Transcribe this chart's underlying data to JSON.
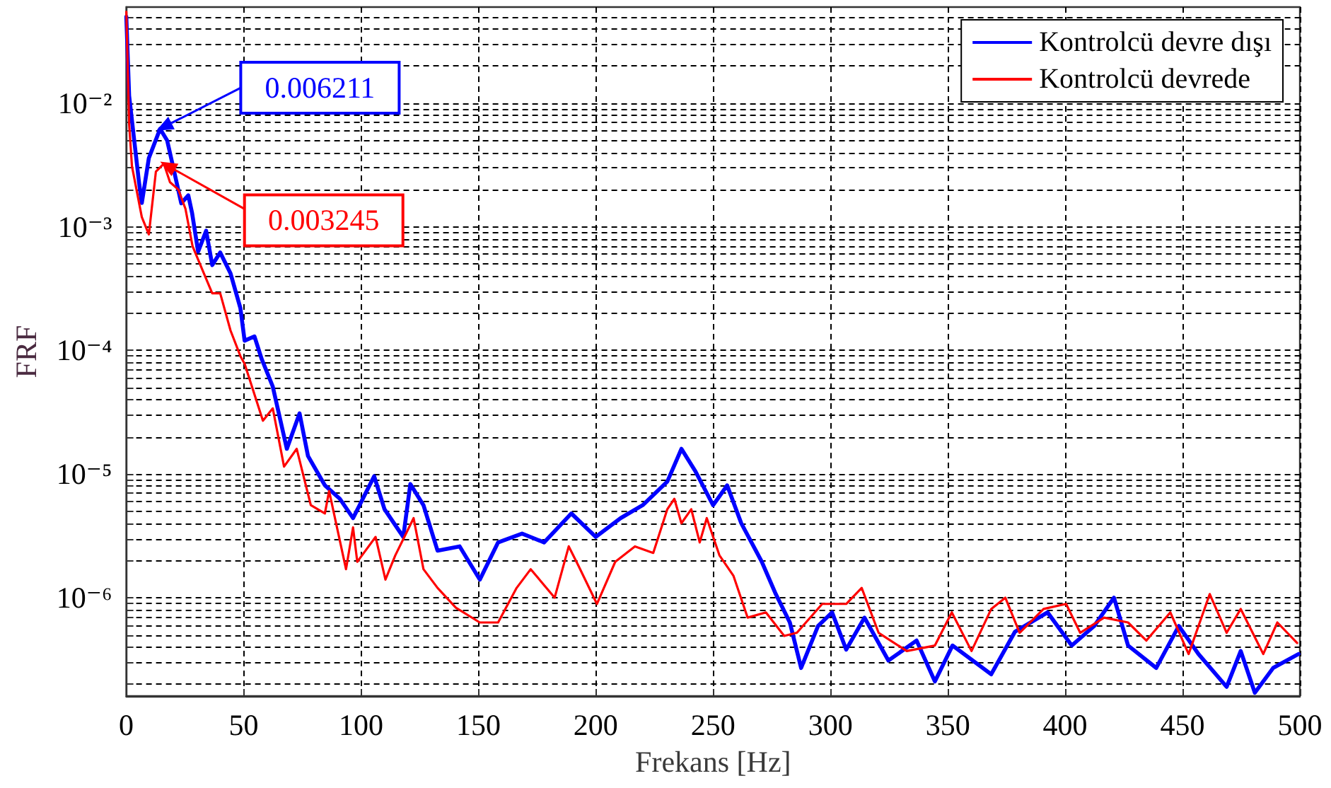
{
  "chart_data": {
    "type": "line",
    "xlabel": "Frekans [Hz]",
    "ylabel": "FRF",
    "log": "y",
    "grid": true,
    "legend": "top right",
    "marker": "none",
    "xlim": [
      0,
      500
    ],
    "xticks": [
      0,
      50,
      100,
      150,
      200,
      250,
      300,
      350,
      400,
      450,
      500
    ],
    "ylim": [
      1.6e-07,
      0.06
    ],
    "yticks": [
      {
        "value": 2e-07,
        "label": null
      },
      {
        "value": 3e-07,
        "label": null
      },
      {
        "value": 4e-07,
        "label": null
      },
      {
        "value": 5e-07,
        "label": null
      },
      {
        "value": 6e-07,
        "label": null
      },
      {
        "value": 7e-07,
        "label": null
      },
      {
        "value": 8e-07,
        "label": null
      },
      {
        "value": 9e-07,
        "label": null
      },
      {
        "value": 1e-06,
        "label": "10⁻⁶"
      },
      {
        "value": 2e-06,
        "label": null
      },
      {
        "value": 3e-06,
        "label": null
      },
      {
        "value": 4e-06,
        "label": null
      },
      {
        "value": 5e-06,
        "label": null
      },
      {
        "value": 6e-06,
        "label": null
      },
      {
        "value": 7e-06,
        "label": null
      },
      {
        "value": 8e-06,
        "label": null
      },
      {
        "value": 9e-06,
        "label": null
      },
      {
        "value": 1e-05,
        "label": "10⁻⁵"
      },
      {
        "value": 2e-05,
        "label": null
      },
      {
        "value": 3e-05,
        "label": null
      },
      {
        "value": 4e-05,
        "label": null
      },
      {
        "value": 5e-05,
        "label": null
      },
      {
        "value": 6e-05,
        "label": null
      },
      {
        "value": 7e-05,
        "label": null
      },
      {
        "value": 8e-05,
        "label": null
      },
      {
        "value": 9e-05,
        "label": null
      },
      {
        "value": 0.0001,
        "label": "10⁻⁴"
      },
      {
        "value": 0.0002,
        "label": null
      },
      {
        "value": 0.0003,
        "label": null
      },
      {
        "value": 0.0004,
        "label": null
      },
      {
        "value": 0.0005,
        "label": null
      },
      {
        "value": 0.0006,
        "label": null
      },
      {
        "value": 0.0007,
        "label": null
      },
      {
        "value": 0.0008,
        "label": null
      },
      {
        "value": 0.0009,
        "label": null
      },
      {
        "value": 0.001,
        "label": "10⁻³"
      },
      {
        "value": 0.002,
        "label": null
      },
      {
        "value": 0.003,
        "label": null
      },
      {
        "value": 0.004,
        "label": null
      },
      {
        "value": 0.005,
        "label": null
      },
      {
        "value": 0.006,
        "label": null
      },
      {
        "value": 0.007,
        "label": null
      },
      {
        "value": 0.008,
        "label": null
      },
      {
        "value": 0.009,
        "label": null
      },
      {
        "value": 0.01,
        "label": "10⁻²"
      },
      {
        "value": 0.02,
        "label": null
      },
      {
        "value": 0.03,
        "label": null
      },
      {
        "value": 0.04,
        "label": null
      },
      {
        "value": 0.05,
        "label": null
      }
    ],
    "annotations": [
      {
        "text": "0.006211",
        "x": 14.4,
        "y": 0.006211
      },
      {
        "text": "0.003245",
        "x": 16,
        "y": 0.003245
      }
    ],
    "series": [
      {
        "name": "Kontrolcü devre dışı",
        "color": "#0000ff",
        "x": [
          0,
          1.2,
          5.4,
          6.6,
          9.6,
          14.4,
          17.4,
          20.4,
          23.4,
          26.4,
          28,
          30.6,
          34,
          36.6,
          40,
          44.4,
          48.6,
          50.4,
          54.6,
          57.6,
          62.4,
          68.4,
          73.8,
          77.4,
          84.6,
          91,
          96.6,
          105.6,
          110,
          118,
          121,
          126.6,
          132.6,
          142,
          150.6,
          158.4,
          168.6,
          178,
          189.6,
          200,
          210.6,
          220,
          230.5,
          236.5,
          242.5,
          250,
          256,
          262,
          270.7,
          276.7,
          282.7,
          287.5,
          294.7,
          300.7,
          306.7,
          314.5,
          324.7,
          336.7,
          344.5,
          352,
          368.5,
          378.6,
          392.5,
          402.8,
          412.4,
          420.8,
          426.8,
          438.8,
          448.4,
          456.8,
          468.8,
          474.8,
          480.8,
          488.6,
          499.4
        ],
        "values": [
          0.05,
          0.0115,
          0.0023,
          0.00156,
          0.0036,
          0.006211,
          0.005,
          0.0028,
          0.00155,
          0.0018,
          0.0013,
          0.00063,
          0.00093,
          0.00049,
          0.00062,
          0.00042,
          0.00022,
          0.00012,
          0.00013,
          8.6e-05,
          5.1e-05,
          1.6e-05,
          3.1e-05,
          1.4e-05,
          8.1e-06,
          6.3e-06,
          4.4e-06,
          9.6e-06,
          5.2e-06,
          3.1e-06,
          8.3e-06,
          5.6e-06,
          2.4e-06,
          2.6e-06,
          1.4e-06,
          2.8e-06,
          3.3e-06,
          2.8e-06,
          4.8e-06,
          3.1e-06,
          4.4e-06,
          5.6e-06,
          8.7e-06,
          1.6e-05,
          1.05e-05,
          5.6e-06,
          8.1e-06,
          4e-06,
          1.96e-06,
          1.07e-06,
          6.3e-07,
          2.7e-07,
          5.9e-07,
          7.6e-07,
          3.8e-07,
          6.9e-07,
          3.1e-07,
          4.5e-07,
          2.1e-07,
          4.1e-07,
          2.4e-07,
          5.3e-07,
          7.6e-07,
          4.1e-07,
          5.9e-07,
          1e-06,
          4.1e-07,
          2.7e-07,
          5.9e-07,
          3.5e-07,
          1.9e-07,
          3.7e-07,
          1.7e-07,
          2.7e-07,
          3.5e-07
        ]
      },
      {
        "name": "Kontrolcü devrede",
        "color": "#ff0000",
        "x": [
          0,
          1.2,
          2.4,
          6.6,
          9.6,
          12.6,
          16,
          18.6,
          22.2,
          25.2,
          28.2,
          32.4,
          36.6,
          40,
          44.4,
          48.6,
          50.4,
          58.2,
          62.4,
          67.2,
          72.6,
          78.6,
          84.6,
          86.4,
          93.6,
          96.6,
          98.4,
          106.2,
          110.4,
          114.6,
          122.4,
          126.6,
          132.6,
          140.4,
          150.6,
          158.4,
          166.3,
          172.3,
          182.5,
          188.5,
          192.7,
          200.5,
          208.3,
          216.7,
          224.5,
          230.5,
          233.5,
          236.5,
          240.7,
          244.3,
          247.3,
          252.7,
          258.7,
          264.7,
          272.5,
          280.3,
          285.7,
          296.5,
          306.7,
          313.3,
          320.5,
          332.5,
          344.5,
          351.7,
          360.1,
          368.5,
          374.5,
          380.6,
          390.8,
          400.4,
          406.4,
          416.6,
          426.8,
          434.6,
          444.8,
          452.6,
          461.6,
          468.8,
          474.8,
          484.4,
          490.4,
          498.8
        ],
        "values": [
          0.055,
          0.0068,
          0.0031,
          0.0012,
          0.00087,
          0.0028,
          0.003245,
          0.0023,
          0.002,
          0.0014,
          0.0007,
          0.00045,
          0.00029,
          0.00029,
          0.000145,
          9e-05,
          7.8e-05,
          2.7e-05,
          3.4e-05,
          1.15e-05,
          1.6e-05,
          5.6e-06,
          4.8e-06,
          7.3e-06,
          1.7e-06,
          3.7e-06,
          1.95e-06,
          3.1e-06,
          1.4e-06,
          2.2e-06,
          4.4e-06,
          1.7e-06,
          1.2e-06,
          8.3e-07,
          6.3e-07,
          6.3e-07,
          1.2e-06,
          1.7e-06,
          1e-06,
          2.6e-06,
          1.8e-06,
          8.9e-07,
          1.95e-06,
          2.6e-06,
          2.3e-06,
          5.2e-06,
          6.3e-06,
          4e-06,
          5.2e-06,
          2.8e-06,
          4.4e-06,
          2.2e-06,
          1.5e-06,
          6.9e-07,
          7.6e-07,
          4.9e-07,
          5.2e-07,
          8.9e-07,
          8.9e-07,
          1.2e-06,
          5.2e-07,
          3.7e-07,
          4.1e-07,
          7.6e-07,
          3.7e-07,
          8.1e-07,
          1e-06,
          5.2e-07,
          8.1e-07,
          8.9e-07,
          5.2e-07,
          6.9e-07,
          6.3e-07,
          4.5e-07,
          7.6e-07,
          3.5e-07,
          1.07e-06,
          5.2e-07,
          8.1e-07,
          3.5e-07,
          6.3e-07,
          4.3e-07
        ]
      }
    ]
  }
}
